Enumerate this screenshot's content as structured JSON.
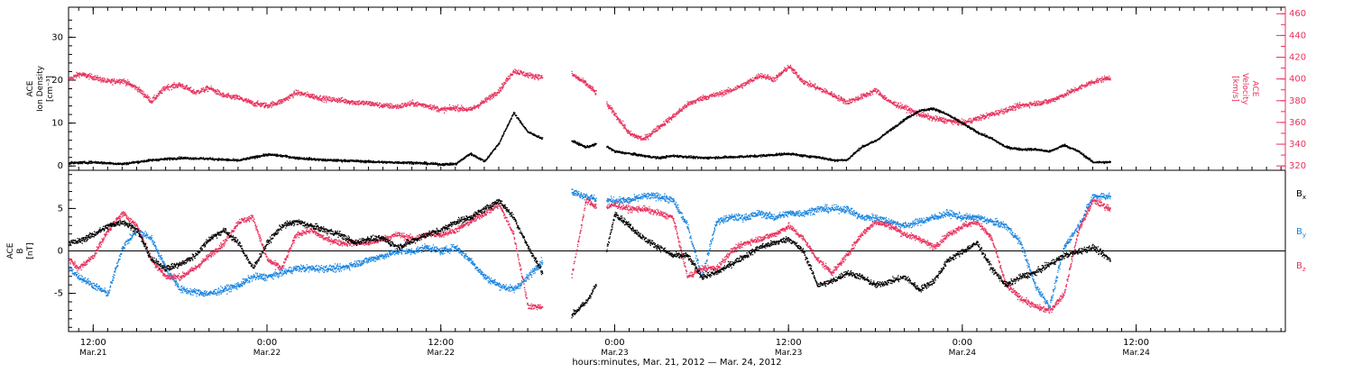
{
  "colors": {
    "black": "#000000",
    "pink": "#e8325d",
    "blue": "#1a85e0",
    "axis": "#000000"
  },
  "x_axis": {
    "title": "hours:minutes, Mar. 21, 2012 — Mar. 24, 2012",
    "range_hours": [
      -1.7,
      82.3
    ],
    "ticks": [
      {
        "h": 0,
        "time": "12:00",
        "date": "Mar.21"
      },
      {
        "h": 12,
        "time": "0:00",
        "date": "Mar.22"
      },
      {
        "h": 24,
        "time": "12:00",
        "date": "Mar.22"
      },
      {
        "h": 36,
        "time": "0:00",
        "date": "Mar.23"
      },
      {
        "h": 48,
        "time": "12:00",
        "date": "Mar.23"
      },
      {
        "h": 60,
        "time": "0:00",
        "date": "Mar.24"
      },
      {
        "h": 72,
        "time": "12:00",
        "date": "Mar.24"
      }
    ]
  },
  "chart_data": [
    {
      "type": "scatter",
      "panel": "top",
      "left_axis": {
        "label_lines": [
          "ACE",
          "Ion Density",
          "[cm⁻³]"
        ],
        "range": [
          -1,
          37
        ],
        "ticks": [
          0,
          10,
          20,
          30
        ]
      },
      "right_axis": {
        "label_lines": [
          "ACE",
          "Velocity",
          "[km/s]"
        ],
        "range": [
          316,
          466
        ],
        "ticks": [
          320,
          340,
          360,
          380,
          400,
          420,
          440,
          460
        ]
      },
      "series": [
        {
          "color": "black",
          "axis": "left",
          "x": [
            -1.7,
            0,
            2,
            4,
            6,
            8,
            10,
            12,
            13,
            14,
            16,
            18,
            20,
            22,
            24,
            25,
            26,
            27,
            28,
            29,
            30,
            31,
            32,
            33,
            34,
            35,
            36,
            37,
            38,
            39,
            40,
            42,
            44,
            46,
            48,
            49,
            50,
            51,
            52,
            53,
            54,
            55,
            56,
            57,
            58,
            59,
            60,
            61,
            62,
            63,
            64,
            65,
            66,
            67,
            68,
            69,
            70.2
          ],
          "y": [
            0.8,
            1.0,
            0.6,
            1.5,
            2.0,
            1.8,
            1.4,
            2.8,
            2.5,
            2.0,
            1.5,
            1.3,
            1.0,
            0.9,
            0.5,
            0.6,
            3.0,
            1.2,
            5.5,
            12.5,
            8.0,
            6.5,
            null,
            6.0,
            4.5,
            5.5,
            3.5,
            3.0,
            2.5,
            2.0,
            2.5,
            2.0,
            2.2,
            2.5,
            3.0,
            2.5,
            2.2,
            1.5,
            1.5,
            4.5,
            6.0,
            8.5,
            11.0,
            13.0,
            13.5,
            12.0,
            10.0,
            8.0,
            6.5,
            4.5,
            4.0,
            4.0,
            3.5,
            5.0,
            3.5,
            1.0,
            1.0
          ]
        },
        {
          "color": "pink",
          "axis": "right",
          "x": [
            -1.7,
            -1,
            0,
            1,
            2,
            3,
            4,
            5,
            6,
            7,
            8,
            9,
            10,
            11,
            12,
            13,
            14,
            15,
            16,
            17,
            18,
            19,
            20,
            21,
            22,
            23,
            24,
            25,
            26,
            27,
            28,
            29,
            30,
            31,
            32,
            33,
            34,
            35,
            36,
            37,
            38,
            39,
            40,
            41,
            42,
            43,
            44,
            45,
            46,
            47,
            48,
            49,
            50,
            51,
            52,
            53,
            54,
            55,
            56,
            57,
            58,
            59,
            60,
            61,
            62,
            63,
            64,
            65,
            66,
            67,
            68,
            69,
            70.2
          ],
          "y": [
            400,
            405,
            402,
            398,
            399,
            392,
            380,
            393,
            395,
            388,
            392,
            385,
            383,
            378,
            376,
            380,
            388,
            385,
            382,
            381,
            379,
            378,
            376,
            375,
            378,
            376,
            372,
            374,
            372,
            380,
            390,
            408,
            404,
            402,
            null,
            405,
            396,
            384,
            368,
            350,
            345,
            356,
            366,
            377,
            383,
            386,
            390,
            396,
            404,
            400,
            412,
            398,
            392,
            386,
            379,
            384,
            390,
            379,
            374,
            368,
            364,
            362,
            360,
            364,
            368,
            372,
            376,
            378,
            380,
            386,
            392,
            398,
            402
          ]
        }
      ]
    },
    {
      "type": "scatter",
      "panel": "bottom",
      "left_axis": {
        "label_lines": [
          "ACE",
          "B",
          "[nT]"
        ],
        "range": [
          -9.5,
          9.5
        ],
        "ticks": [
          -5,
          0,
          5
        ]
      },
      "legend_position": "right",
      "series": [
        {
          "name": "Bx",
          "color": "black",
          "x": [
            -1.7,
            -1,
            0,
            1,
            2,
            3,
            4,
            5,
            6,
            7,
            8,
            9,
            10,
            11,
            12,
            13,
            14,
            15,
            16,
            17,
            18,
            19,
            20,
            21,
            22,
            23,
            24,
            25,
            26,
            27,
            28,
            29,
            30,
            31,
            32,
            33,
            34,
            35,
            36,
            37,
            38,
            39,
            40,
            41,
            42,
            43,
            44,
            45,
            46,
            47,
            48,
            49,
            50,
            51,
            52,
            53,
            54,
            55,
            56,
            57,
            58,
            59,
            60,
            61,
            62,
            63,
            64,
            65,
            66,
            67,
            68,
            69,
            70.2
          ],
          "y": [
            1.0,
            1.2,
            2.0,
            3.0,
            3.5,
            2.5,
            -1.0,
            -2.0,
            -1.5,
            -0.5,
            1.5,
            2.5,
            1.0,
            -2.0,
            1.0,
            3.0,
            3.5,
            3.0,
            2.5,
            2.0,
            1.0,
            1.5,
            1.5,
            0.5,
            1.2,
            2.0,
            2.5,
            3.5,
            4.0,
            5.0,
            6.0,
            4.0,
            0.5,
            -2.5,
            null,
            -7.5,
            -6.0,
            -3.0,
            4.5,
            3.0,
            1.5,
            0.5,
            -0.5,
            -0.5,
            -3.0,
            -2.5,
            -1.5,
            -0.5,
            0.5,
            1.0,
            1.5,
            0.0,
            -4.0,
            -3.5,
            -2.5,
            -3.0,
            -4.0,
            -3.5,
            -3.0,
            -4.5,
            -3.5,
            -1.0,
            0.0,
            1.0,
            -2.0,
            -4.0,
            -3.0,
            -2.5,
            -1.5,
            -0.5,
            0.0,
            0.5,
            -1.0
          ]
        },
        {
          "name": "By",
          "color": "blue",
          "x": [
            -1.7,
            -1,
            0,
            1,
            2,
            3,
            4,
            5,
            6,
            7,
            8,
            9,
            10,
            11,
            12,
            13,
            14,
            15,
            16,
            17,
            18,
            19,
            20,
            21,
            22,
            23,
            24,
            25,
            26,
            27,
            28,
            29,
            30,
            31,
            32,
            33,
            34,
            35,
            36,
            37,
            38,
            39,
            40,
            41,
            42,
            43,
            44,
            45,
            46,
            47,
            48,
            49,
            50,
            51,
            52,
            53,
            54,
            55,
            56,
            57,
            58,
            59,
            60,
            61,
            62,
            63,
            64,
            65,
            66,
            67,
            68,
            69,
            70.2
          ],
          "y": [
            -2.0,
            -3.0,
            -4.0,
            -5.0,
            0.5,
            2.5,
            1.5,
            -2.0,
            -4.5,
            -4.8,
            -5.0,
            -4.5,
            -4.0,
            -3.0,
            -3.0,
            -2.5,
            -2.0,
            -2.0,
            -2.0,
            -2.0,
            -1.5,
            -1.0,
            -0.5,
            0.0,
            0.0,
            0.5,
            0.0,
            0.5,
            -1.0,
            -3.0,
            -4.0,
            -4.5,
            -3.0,
            -1.0,
            null,
            7.0,
            6.5,
            6.0,
            6.0,
            6.0,
            6.5,
            6.5,
            6.0,
            3.0,
            -3.0,
            3.5,
            4.0,
            4.0,
            4.5,
            4.0,
            4.5,
            4.5,
            5.0,
            5.0,
            5.0,
            4.0,
            4.0,
            3.5,
            3.0,
            3.5,
            4.0,
            4.5,
            4.0,
            4.0,
            3.5,
            3.0,
            1.0,
            -4.0,
            -6.5,
            0.5,
            3.0,
            6.5,
            6.5
          ]
        },
        {
          "name": "Bz",
          "color": "pink",
          "x": [
            -1.7,
            -1,
            0,
            1,
            2,
            3,
            4,
            5,
            6,
            7,
            8,
            9,
            10,
            11,
            12,
            13,
            14,
            15,
            16,
            17,
            18,
            19,
            20,
            21,
            22,
            23,
            24,
            25,
            26,
            27,
            28,
            29,
            30,
            31,
            32,
            33,
            34,
            35,
            36,
            37,
            38,
            39,
            40,
            41,
            42,
            43,
            44,
            45,
            46,
            47,
            48,
            49,
            50,
            51,
            52,
            53,
            54,
            55,
            56,
            57,
            58,
            59,
            60,
            61,
            62,
            63,
            64,
            65,
            66,
            67,
            68,
            69,
            70.2
          ],
          "y": [
            -1.0,
            -2.0,
            -0.5,
            2.5,
            4.5,
            3.0,
            -1.0,
            -3.0,
            -3.0,
            -2.0,
            -0.5,
            1.0,
            3.5,
            4.0,
            -1.0,
            -2.0,
            2.0,
            2.5,
            1.5,
            1.0,
            1.0,
            1.0,
            1.5,
            2.0,
            1.5,
            2.0,
            2.0,
            2.5,
            3.5,
            4.5,
            5.5,
            2.0,
            -6.5,
            -6.5,
            null,
            -3.0,
            6.0,
            5.0,
            5.5,
            5.0,
            5.0,
            4.5,
            4.0,
            -3.0,
            -2.0,
            -2.0,
            0.0,
            1.0,
            1.5,
            2.0,
            3.0,
            1.5,
            -1.0,
            -2.5,
            -0.5,
            2.0,
            3.5,
            3.0,
            2.0,
            1.5,
            0.5,
            2.0,
            3.0,
            3.5,
            1.5,
            -4.0,
            -5.5,
            -6.5,
            -7.0,
            -5.0,
            2.5,
            6.0,
            5.0
          ]
        }
      ]
    }
  ]
}
